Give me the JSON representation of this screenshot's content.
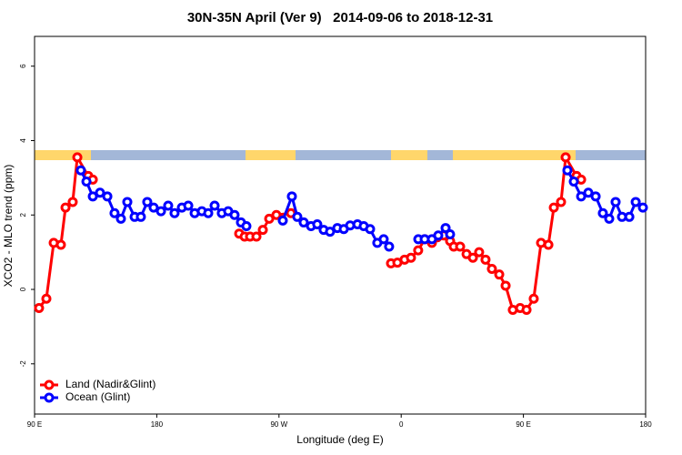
{
  "chart_data": {
    "type": "line",
    "title": "30N-35N April (Ver 9)   2014-09-06 to 2018-12-31",
    "x_label": "Longitude (deg E)",
    "y_label": "XCO2 - MLO trend (ppm)",
    "xlim": [
      90,
      540
    ],
    "ylim": [
      -3.35,
      6.8
    ],
    "xticks": [
      {
        "value": 90,
        "label": "90 E"
      },
      180,
      {
        "value": 270,
        "label": "90 W"
      },
      {
        "value": 360,
        "label": "0"
      },
      {
        "value": 450,
        "label": "90 E"
      },
      {
        "value": 540,
        "label": "180"
      }
    ],
    "yticks": [
      -2,
      0,
      2,
      4,
      6
    ],
    "legend": "bottom-left",
    "series": [
      {
        "name": "Land (Nadir&Glint)",
        "color": "#ff0000",
        "x": [
          93.3,
          98.7,
          104.1,
          109.4,
          112.8,
          118.1,
          121.5,
          129.5,
          132.9,
          175,
          240.7,
          244.7,
          248.7,
          253.4,
          258.1,
          262.8,
          268.1,
          278.8,
          285,
          352.5,
          357.2,
          362.5,
          367.2,
          372.5,
          377.3,
          382.6,
          386.6,
          391.3,
          396,
          398.7,
          403.4,
          408.1,
          412.8,
          417.4,
          422.1,
          426.8,
          432.2,
          436.9,
          442.2,
          447.6,
          452.3,
          457.6,
          463,
          468.4,
          472.4,
          477.7,
          481.1,
          489.1,
          492.5
        ],
        "values": [
          -0.5,
          -0.25,
          1.25,
          1.2,
          2.2,
          2.35,
          3.55,
          3.05,
          2.95,
          null,
          1.5,
          1.42,
          1.42,
          1.42,
          1.6,
          1.9,
          2.0,
          2.05,
          null,
          0.7,
          0.72,
          0.8,
          0.85,
          1.05,
          1.35,
          1.25,
          1.4,
          1.45,
          1.3,
          1.15,
          1.15,
          0.95,
          0.85,
          1.0,
          0.8,
          0.55,
          0.4,
          0.1,
          -0.55,
          -0.5,
          -0.55,
          -0.25,
          1.25,
          1.2,
          2.2,
          2.35,
          3.55,
          3.05,
          2.95
        ]
      },
      {
        "name": "Ocean (Glint)",
        "color": "#0000ff",
        "x": [
          124.1,
          128.2,
          132.9,
          138.2,
          143.6,
          148.9,
          153.6,
          158.3,
          163.7,
          168.3,
          173,
          177.7,
          183.1,
          188.4,
          193.1,
          198.5,
          203.2,
          207.9,
          213.2,
          217.9,
          222.6,
          227.9,
          232.6,
          237.3,
          242,
          246,
          250,
          272.8,
          279.5,
          283.5,
          288.2,
          293.6,
          298.2,
          302.9,
          307.6,
          313,
          317.7,
          322.4,
          327.8,
          332.4,
          337.1,
          342.4,
          347.1,
          351.1,
          355,
          372.6,
          377.3,
          382.6,
          387.3,
          392.7,
          396,
          400,
          482.4,
          487.1,
          492.5,
          497.8,
          503.2,
          508.5,
          513.2,
          517.9,
          522.6,
          528,
          532.7,
          538
        ],
        "values": [
          3.2,
          2.9,
          2.5,
          2.6,
          2.5,
          2.05,
          1.9,
          2.35,
          1.95,
          1.95,
          2.35,
          2.2,
          2.1,
          2.25,
          2.05,
          2.2,
          2.25,
          2.05,
          2.1,
          2.05,
          2.25,
          2.05,
          2.1,
          2.0,
          1.8,
          1.7,
          null,
          1.85,
          2.5,
          1.95,
          1.8,
          1.7,
          1.75,
          1.6,
          1.55,
          1.65,
          1.62,
          1.72,
          1.75,
          1.7,
          1.62,
          1.25,
          1.35,
          1.15,
          null,
          1.35,
          1.35,
          1.35,
          1.45,
          1.65,
          1.48,
          null,
          3.2,
          2.9,
          2.5,
          2.6,
          2.5,
          2.05,
          1.9,
          2.35,
          1.95,
          1.95,
          2.35,
          2.2
        ]
      }
    ]
  }
}
